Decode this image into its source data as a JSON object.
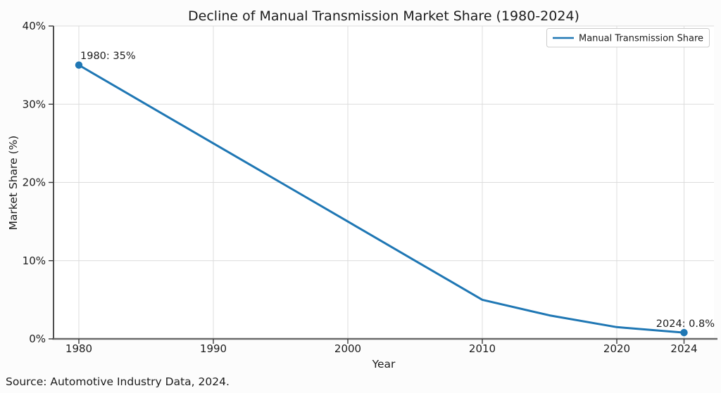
{
  "figure": {
    "source_note": "Source: Automotive Industry Data, 2024."
  },
  "chart_data": {
    "type": "line",
    "title": "Decline of Manual Transmission Market Share (1980-2024)",
    "xlabel": "Year",
    "ylabel": "Market Share (%)",
    "x": [
      1980,
      1985,
      1990,
      1995,
      2000,
      2005,
      2010,
      2015,
      2020,
      2024
    ],
    "series": [
      {
        "name": "Manual Transmission Share",
        "color": "#1f77b4",
        "values": [
          35,
          30,
          25,
          20,
          15,
          10,
          5,
          3,
          1.5,
          0.8
        ]
      }
    ],
    "ylim": [
      0,
      40
    ],
    "y_ticks": [
      {
        "value": 0,
        "label": "0%"
      },
      {
        "value": 10,
        "label": "10%"
      },
      {
        "value": 20,
        "label": "20%"
      },
      {
        "value": 30,
        "label": "30%"
      },
      {
        "value": 40,
        "label": "40%"
      }
    ],
    "x_ticks": [
      {
        "index": 0,
        "label": "1980"
      },
      {
        "index": 2,
        "label": "1990"
      },
      {
        "index": 4,
        "label": "2000"
      },
      {
        "index": 6,
        "label": "2010"
      },
      {
        "index": 8,
        "label": "2020"
      },
      {
        "index": 9,
        "label": "2024"
      }
    ],
    "grid": true,
    "legend": {
      "position": "upper-right",
      "label": "Manual Transmission Share"
    },
    "annotations": [
      {
        "text": "1980: 35%",
        "point": "first"
      },
      {
        "text": "2024: 0.8%",
        "point": "last"
      }
    ],
    "markers": "endpoints-only"
  },
  "colors": {
    "line": "#1f77b4",
    "grid": "#dcdcdc",
    "spine": "#3a3a3a",
    "bottom_spine": "#6a6a6a",
    "legend_border": "#cccccc",
    "text": "#1c1c1c"
  }
}
